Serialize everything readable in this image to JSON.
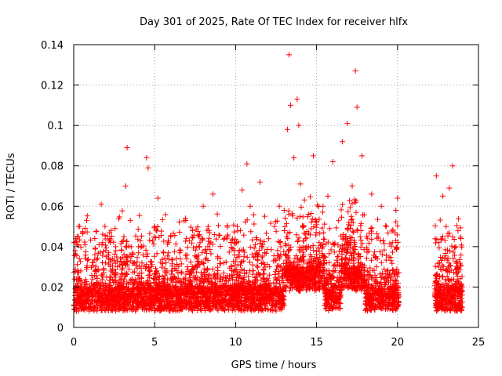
{
  "chart_data": {
    "type": "scatter",
    "title": "Day 301 of 2025, Rate Of TEC Index for receiver hlfx",
    "xlabel": "GPS time / hours",
    "ylabel": "ROTI / TECUs",
    "xlim": [
      0,
      25
    ],
    "ylim": [
      0,
      0.14
    ],
    "x_ticks": [
      0,
      5,
      10,
      15,
      20,
      25
    ],
    "y_ticks": [
      0,
      0.02,
      0.04,
      0.06,
      0.08,
      0.1,
      0.12,
      0.14
    ],
    "grid": true,
    "legend": "none",
    "marker": "+",
    "color": "#ff0000",
    "data_gap_hours": [
      20.1,
      22.3
    ],
    "series": [
      {
        "x": [
          0.0,
          0.2,
          0.3,
          0.5,
          0.8,
          1.0,
          1.3,
          1.5,
          1.7,
          1.8,
          2.0,
          2.3,
          2.6,
          2.9,
          3.1,
          3.2,
          3.3,
          3.5,
          3.8,
          4.0,
          4.3,
          4.5,
          4.6,
          4.8,
          5.0,
          5.2,
          5.4,
          5.7,
          6.0,
          6.3,
          6.6,
          6.9,
          7.2,
          7.5,
          7.8,
          8.0,
          8.3,
          8.6,
          8.9,
          9.2,
          9.5,
          9.8,
          10.1,
          10.4,
          10.7,
          10.9,
          11.2,
          11.5,
          11.8,
          12.1,
          12.4,
          12.7,
          13.0,
          13.2,
          13.3,
          13.4,
          13.6,
          13.8,
          13.9,
          14.0,
          14.2,
          14.5,
          14.8,
          15.1,
          15.4,
          15.7,
          16.0,
          16.3,
          16.6,
          16.9,
          17.2,
          17.4,
          17.5,
          17.8,
          18.1,
          18.4,
          18.7,
          19.0,
          19.3,
          19.6,
          19.9,
          20.0,
          22.4,
          22.6,
          22.8,
          23.0,
          23.2,
          23.4,
          23.6,
          23.8,
          24.0
        ],
        "y": [
          0.042,
          0.018,
          0.05,
          0.015,
          0.053,
          0.02,
          0.044,
          0.012,
          0.061,
          0.025,
          0.035,
          0.014,
          0.038,
          0.01,
          0.045,
          0.07,
          0.089,
          0.033,
          0.016,
          0.04,
          0.022,
          0.084,
          0.079,
          0.03,
          0.05,
          0.064,
          0.018,
          0.032,
          0.045,
          0.02,
          0.038,
          0.054,
          0.012,
          0.03,
          0.042,
          0.06,
          0.05,
          0.066,
          0.035,
          0.02,
          0.045,
          0.012,
          0.05,
          0.068,
          0.081,
          0.06,
          0.035,
          0.072,
          0.055,
          0.03,
          0.05,
          0.06,
          0.058,
          0.098,
          0.135,
          0.11,
          0.084,
          0.113,
          0.1,
          0.071,
          0.05,
          0.04,
          0.085,
          0.02,
          0.06,
          0.065,
          0.082,
          0.035,
          0.092,
          0.101,
          0.07,
          0.127,
          0.109,
          0.085,
          0.045,
          0.066,
          0.03,
          0.06,
          0.05,
          0.025,
          0.058,
          0.064,
          0.075,
          0.032,
          0.065,
          0.05,
          0.069,
          0.08,
          0.04,
          0.018,
          0.01
        ]
      }
    ]
  }
}
